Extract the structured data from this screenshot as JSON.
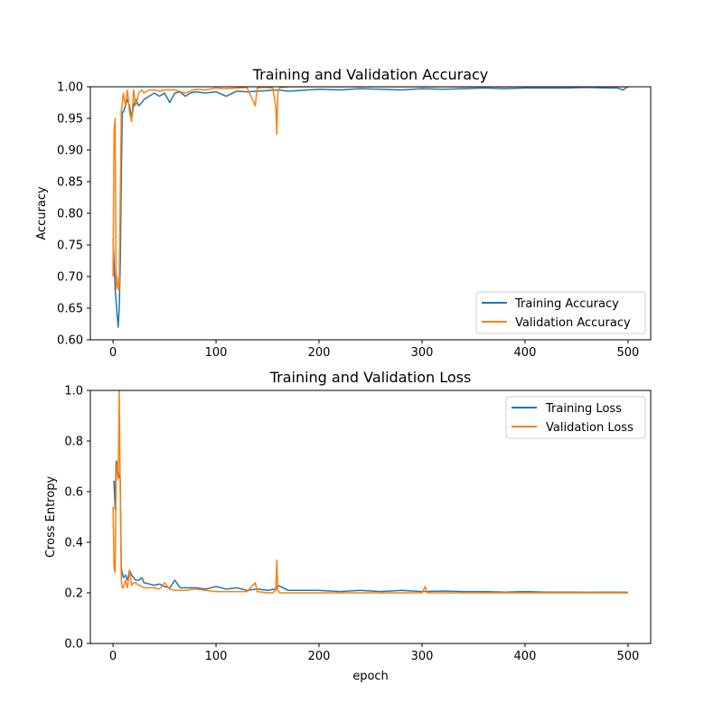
{
  "colors": {
    "training": "#1f77b4",
    "validation": "#ff7f0e"
  },
  "chart_data": [
    {
      "type": "line",
      "title": "Training and Validation Accuracy",
      "xlabel": "",
      "ylabel": "Accuracy",
      "xlim": [
        -22,
        522
      ],
      "ylim": [
        0.6,
        1.0
      ],
      "xticks": [
        0,
        100,
        200,
        300,
        400,
        500
      ],
      "yticks": [
        "0.60",
        "0.65",
        "0.70",
        "0.75",
        "0.80",
        "0.85",
        "0.90",
        "0.95",
        "1.00"
      ],
      "grid": false,
      "legend_position": "lower-right",
      "series": [
        {
          "name": "Training Accuracy",
          "color": "#1f77b4",
          "x": [
            0,
            2,
            4,
            5,
            6,
            7,
            8,
            9,
            10,
            12,
            14,
            16,
            18,
            20,
            22,
            25,
            28,
            30,
            35,
            40,
            45,
            50,
            55,
            60,
            65,
            70,
            75,
            80,
            90,
            100,
            110,
            120,
            130,
            140,
            150,
            160,
            170,
            180,
            200,
            220,
            240,
            260,
            280,
            300,
            320,
            340,
            360,
            380,
            400,
            420,
            440,
            460,
            480,
            490,
            495,
            500
          ],
          "y": [
            0.76,
            0.68,
            0.64,
            0.62,
            0.65,
            0.72,
            0.85,
            0.96,
            0.96,
            0.97,
            0.98,
            0.97,
            0.95,
            0.97,
            0.98,
            0.97,
            0.975,
            0.98,
            0.985,
            0.99,
            0.985,
            0.99,
            0.975,
            0.99,
            0.992,
            0.985,
            0.99,
            0.992,
            0.99,
            0.992,
            0.985,
            0.993,
            0.992,
            0.993,
            0.994,
            0.995,
            0.993,
            0.994,
            0.996,
            0.995,
            0.997,
            0.996,
            0.995,
            0.997,
            0.996,
            0.997,
            0.998,
            0.997,
            0.998,
            0.998,
            0.998,
            0.999,
            0.998,
            0.998,
            0.995,
            1.0
          ]
        },
        {
          "name": "Validation Accuracy",
          "color": "#ff7f0e",
          "x": [
            0,
            1,
            2,
            3,
            4,
            5,
            6,
            8,
            10,
            12,
            14,
            16,
            18,
            20,
            22,
            25,
            28,
            30,
            35,
            40,
            45,
            50,
            60,
            70,
            80,
            90,
            100,
            110,
            120,
            130,
            138,
            140,
            145,
            150,
            155,
            158,
            159,
            160,
            162,
            165,
            170,
            180,
            200,
            220,
            240,
            260,
            280,
            300,
            320,
            340,
            360,
            380,
            400,
            420,
            440,
            460,
            480,
            500
          ],
          "y": [
            0.7,
            0.93,
            0.95,
            0.68,
            0.7,
            0.68,
            0.68,
            0.96,
            0.99,
            0.97,
            0.995,
            0.96,
            0.945,
            0.995,
            0.97,
            0.99,
            0.995,
            0.99,
            0.995,
            0.995,
            0.993,
            0.995,
            0.995,
            0.99,
            0.996,
            0.995,
            0.998,
            0.997,
            0.998,
            0.999,
            0.97,
            0.998,
            0.999,
            0.999,
            0.998,
            0.97,
            0.925,
            0.99,
            0.999,
            0.999,
            1.0,
            1.0,
            1.0,
            1.0,
            1.0,
            1.0,
            1.0,
            1.0,
            1.0,
            1.0,
            1.0,
            1.0,
            1.0,
            1.0,
            1.0,
            1.0,
            1.0,
            1.0
          ]
        }
      ]
    },
    {
      "type": "line",
      "title": "Training and Validation Loss",
      "xlabel": "epoch",
      "ylabel": "Cross Entropy",
      "xlim": [
        -22,
        522
      ],
      "ylim": [
        0.0,
        1.0
      ],
      "xticks": [
        0,
        100,
        200,
        300,
        400,
        500
      ],
      "yticks": [
        "0.0",
        "0.2",
        "0.4",
        "0.6",
        "0.8",
        "1.0"
      ],
      "grid": false,
      "legend_position": "upper-right",
      "series": [
        {
          "name": "Training Loss",
          "color": "#1f77b4",
          "x": [
            0,
            1,
            2,
            3,
            4,
            5,
            6,
            7,
            8,
            9,
            10,
            12,
            14,
            16,
            18,
            20,
            22,
            25,
            28,
            30,
            35,
            40,
            45,
            50,
            55,
            60,
            65,
            70,
            80,
            90,
            100,
            110,
            120,
            130,
            140,
            150,
            158,
            160,
            170,
            180,
            200,
            220,
            240,
            260,
            280,
            300,
            320,
            340,
            360,
            380,
            400,
            420,
            440,
            460,
            480,
            500
          ],
          "y": [
            0.64,
            0.64,
            0.53,
            0.72,
            0.67,
            0.68,
            0.66,
            0.65,
            0.3,
            0.28,
            0.26,
            0.27,
            0.25,
            0.29,
            0.27,
            0.26,
            0.25,
            0.25,
            0.26,
            0.24,
            0.235,
            0.23,
            0.235,
            0.225,
            0.22,
            0.25,
            0.22,
            0.22,
            0.22,
            0.215,
            0.225,
            0.215,
            0.22,
            0.21,
            0.215,
            0.21,
            0.215,
            0.23,
            0.21,
            0.21,
            0.21,
            0.205,
            0.21,
            0.205,
            0.21,
            0.205,
            0.207,
            0.205,
            0.205,
            0.203,
            0.205,
            0.203,
            0.203,
            0.202,
            0.203,
            0.202
          ]
        },
        {
          "name": "Validation Loss",
          "color": "#ff7f0e",
          "x": [
            0,
            1,
            2,
            3,
            4,
            5,
            6,
            7,
            8,
            9,
            10,
            12,
            14,
            16,
            18,
            20,
            22,
            25,
            28,
            30,
            35,
            40,
            45,
            50,
            55,
            60,
            70,
            80,
            90,
            100,
            110,
            120,
            130,
            138,
            140,
            150,
            155,
            158,
            159,
            160,
            162,
            170,
            180,
            200,
            220,
            240,
            260,
            280,
            300,
            303,
            305,
            320,
            340,
            360,
            380,
            400,
            420,
            440,
            460,
            480,
            500
          ],
          "y": [
            0.54,
            0.3,
            0.28,
            0.65,
            0.72,
            0.65,
            1.0,
            0.6,
            0.25,
            0.22,
            0.22,
            0.25,
            0.22,
            0.29,
            0.23,
            0.24,
            0.24,
            0.23,
            0.225,
            0.22,
            0.22,
            0.22,
            0.215,
            0.24,
            0.215,
            0.21,
            0.21,
            0.215,
            0.21,
            0.205,
            0.205,
            0.205,
            0.205,
            0.24,
            0.205,
            0.2,
            0.2,
            0.21,
            0.33,
            0.21,
            0.2,
            0.2,
            0.2,
            0.2,
            0.2,
            0.2,
            0.2,
            0.2,
            0.2,
            0.225,
            0.2,
            0.2,
            0.2,
            0.2,
            0.2,
            0.2,
            0.2,
            0.2,
            0.2,
            0.2,
            0.2
          ]
        }
      ]
    }
  ]
}
